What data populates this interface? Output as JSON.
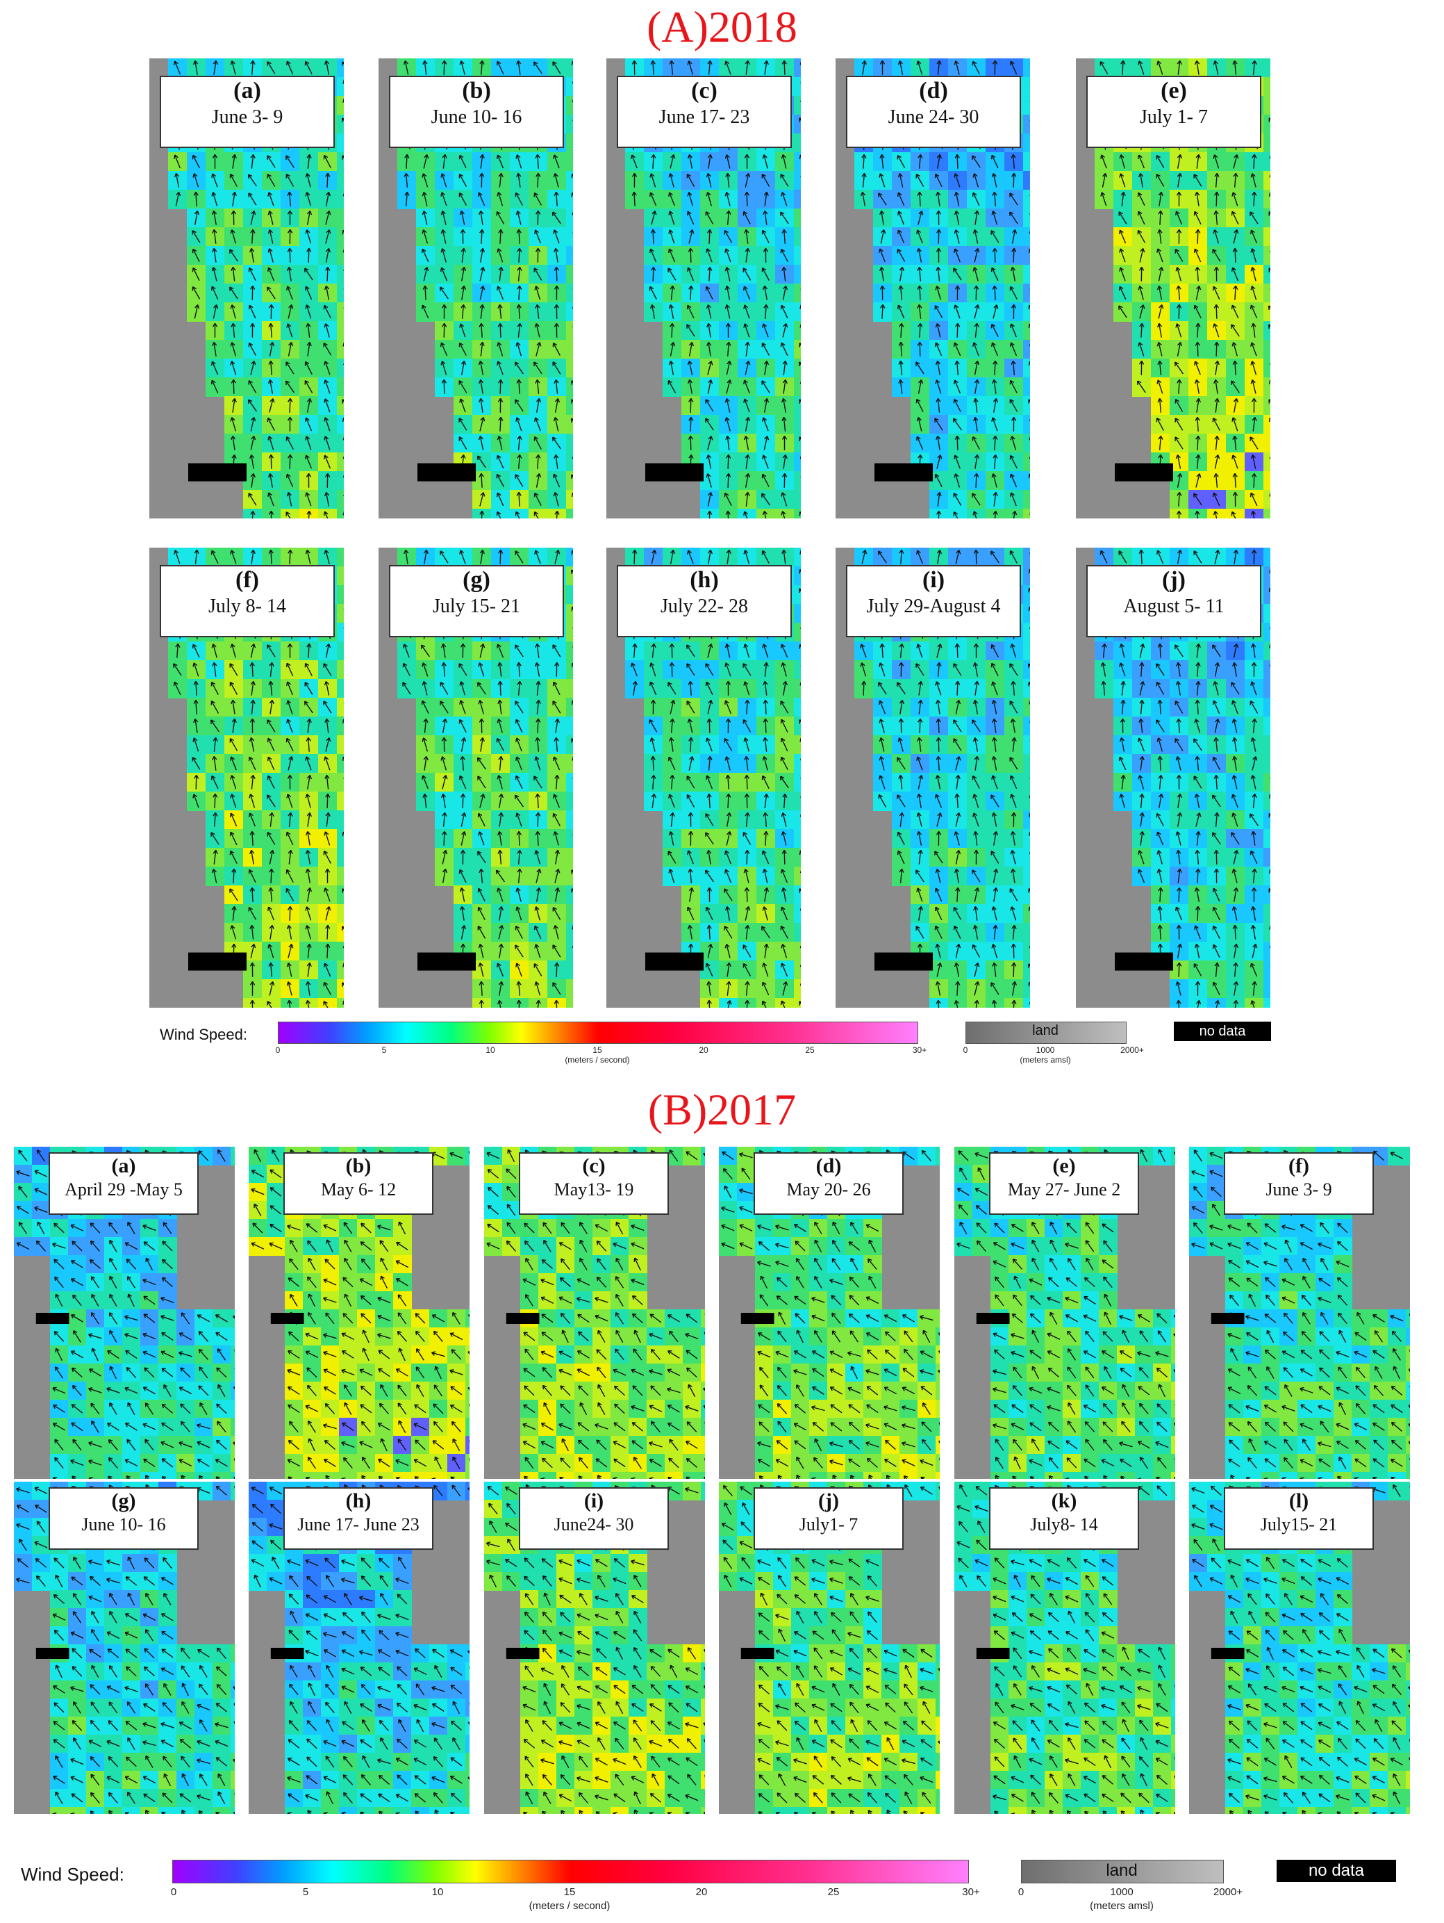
{
  "section_a": {
    "title": "(A)2018",
    "panels": [
      {
        "letter": "a",
        "dates": "June 3- 9"
      },
      {
        "letter": "b",
        "dates": "June 10- 16"
      },
      {
        "letter": "c",
        "dates": "June 17- 23"
      },
      {
        "letter": "d",
        "dates": "June 24- 30"
      },
      {
        "letter": "e",
        "dates": "July 1- 7"
      },
      {
        "letter": "f",
        "dates": "July 8- 14"
      },
      {
        "letter": "g",
        "dates": "July 15- 21"
      },
      {
        "letter": "h",
        "dates": "July 22- 28"
      },
      {
        "letter": "i",
        "dates": "July 29-August 4"
      },
      {
        "letter": "j",
        "dates": "August 5- 11"
      }
    ]
  },
  "section_b": {
    "title": "(B)2017",
    "panels": [
      {
        "letter": "a",
        "dates": "April 29 -May 5"
      },
      {
        "letter": "b",
        "dates": "May 6- 12"
      },
      {
        "letter": "c",
        "dates": "May13- 19"
      },
      {
        "letter": "d",
        "dates": "May 20- 26"
      },
      {
        "letter": "e",
        "dates": "May 27- June 2"
      },
      {
        "letter": "f",
        "dates": "June 3- 9"
      },
      {
        "letter": "g",
        "dates": "June 10- 16"
      },
      {
        "letter": "h",
        "dates": "June 17- June 23"
      },
      {
        "letter": "i",
        "dates": "June24- 30"
      },
      {
        "letter": "j",
        "dates": "July1- 7"
      },
      {
        "letter": "k",
        "dates": "July8- 14"
      },
      {
        "letter": "l",
        "dates": "July15- 21"
      }
    ]
  },
  "legend": {
    "wind_label": "Wind Speed:",
    "ticks": [
      "0",
      "5",
      "10",
      "15",
      "20",
      "25",
      "30+"
    ],
    "unit": "(meters / second)",
    "land_label": "land",
    "land_ticks": [
      "0",
      "1000",
      "2000+"
    ],
    "land_unit": "(meters amsl)",
    "nodata_label": "no data"
  },
  "colors": {
    "title": "#e8161b",
    "land": "#8c8c8c",
    "no_data": "#000000"
  }
}
